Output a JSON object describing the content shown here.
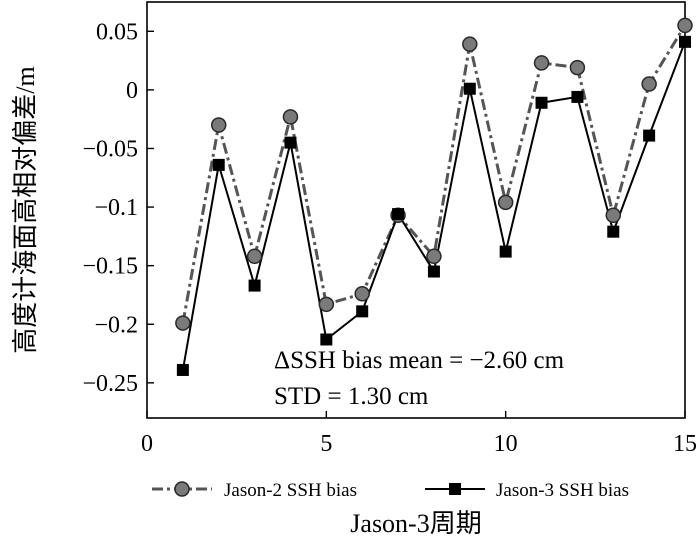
{
  "chart_data": {
    "type": "line",
    "xlabel": "Jason-3周期",
    "ylabel": "高度计海面高相对偏差/m",
    "xlim": [
      0,
      15
    ],
    "ylim": [
      -0.28,
      0.075
    ],
    "xticks": [
      0,
      5,
      10,
      15
    ],
    "xtick_labels": [
      "0",
      "5",
      "10",
      "15"
    ],
    "yticks": [
      0.05,
      0,
      -0.05,
      -0.1,
      -0.15,
      -0.2,
      -0.25
    ],
    "ytick_labels": [
      "0.05",
      "0",
      "−0.05",
      "−0.1",
      "−0.15",
      "−0.2",
      "−0.25"
    ],
    "grid": false,
    "legend_position": "bottom",
    "annotations": [
      "ΔSSH bias mean = −2.60 cm",
      "STD = 1.30 cm"
    ],
    "x": [
      1,
      2,
      3,
      4,
      5,
      6,
      7,
      8,
      9,
      10,
      11,
      12,
      13,
      14,
      15
    ],
    "series": [
      {
        "name": "Jason-2 SSH bias",
        "marker": "circle",
        "line_style": "dash-dot",
        "color": "#555555",
        "values": [
          -0.199,
          -0.03,
          -0.142,
          -0.023,
          -0.183,
          -0.174,
          -0.107,
          -0.142,
          0.039,
          -0.096,
          0.023,
          0.019,
          -0.107,
          0.005,
          0.055
        ]
      },
      {
        "name": "Jason-3 SSH bias",
        "marker": "square",
        "line_style": "solid",
        "color": "#000000",
        "values": [
          -0.239,
          -0.064,
          -0.167,
          -0.045,
          -0.213,
          -0.189,
          -0.106,
          -0.155,
          0.001,
          -0.138,
          -0.011,
          -0.006,
          -0.121,
          -0.039,
          0.041
        ]
      }
    ]
  }
}
